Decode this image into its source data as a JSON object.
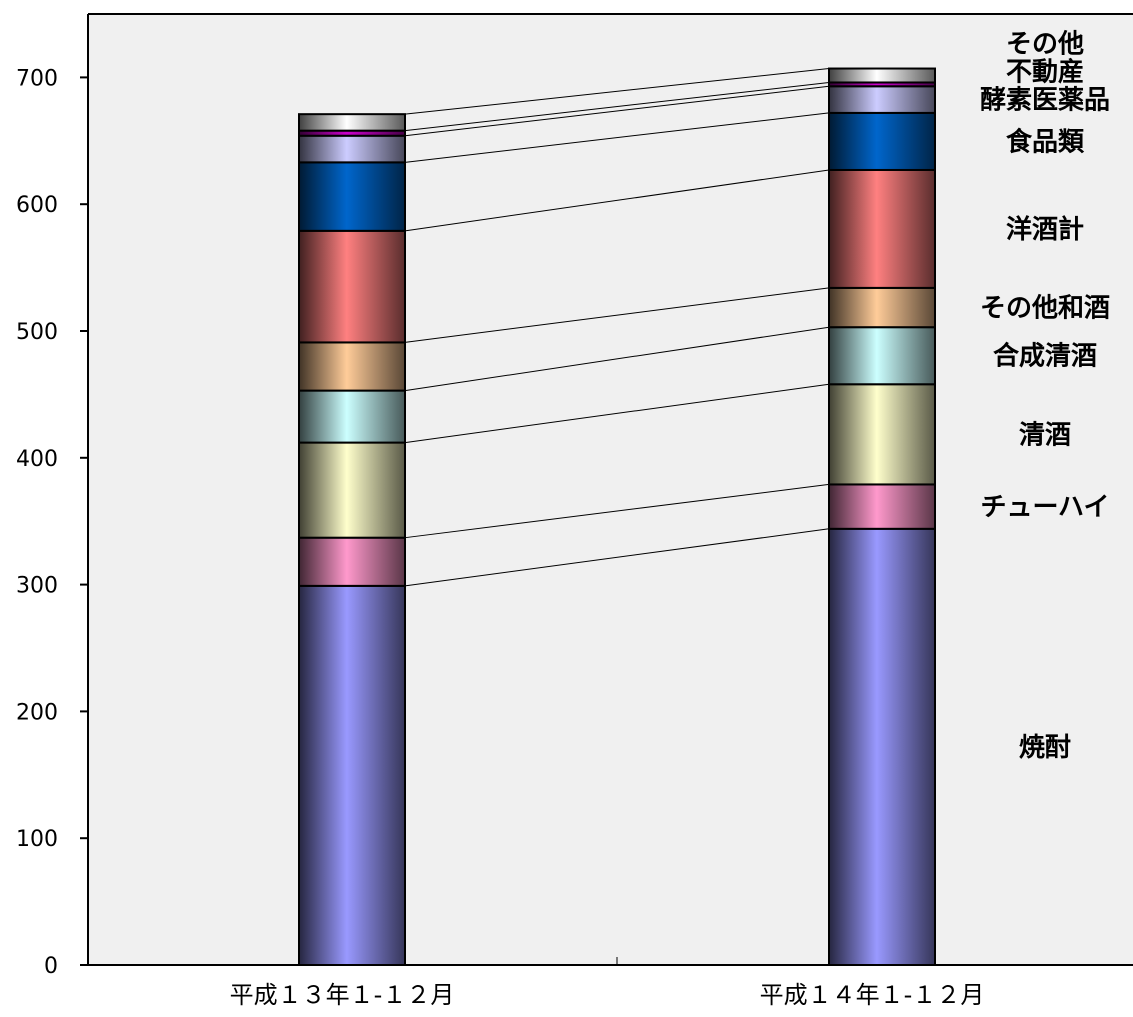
{
  "chart_data": {
    "type": "bar",
    "stacked": true,
    "categories": [
      "平成１３年１-１２月",
      "平成１４年１-１２月"
    ],
    "ylim": [
      0,
      750
    ],
    "yticks": [
      0,
      100,
      200,
      300,
      400,
      500,
      600,
      700
    ],
    "grid": false,
    "plot_background": "#f0f0f0",
    "connector_lines": true,
    "legend": "right, labels beside second bar",
    "series": [
      {
        "name": "焼酎",
        "values": [
          299,
          344
        ],
        "color": "#9999ff"
      },
      {
        "name": "チューハイ",
        "values": [
          38,
          35
        ],
        "color": "#ff99cc"
      },
      {
        "name": "清酒",
        "values": [
          75,
          79
        ],
        "color": "#ffffcc"
      },
      {
        "name": "合成清酒",
        "values": [
          41,
          45
        ],
        "color": "#ccffff"
      },
      {
        "name": "その他和酒",
        "values": [
          38,
          31
        ],
        "color": "#ffcc99"
      },
      {
        "name": "洋酒計",
        "values": [
          88,
          93
        ],
        "color": "#ff8080"
      },
      {
        "name": "食品類",
        "values": [
          54,
          45
        ],
        "color": "#0066cc"
      },
      {
        "name": "酵素医薬品",
        "values": [
          21,
          21
        ],
        "color": "#ccccff"
      },
      {
        "name": "不動産",
        "values": [
          4,
          3
        ],
        "color": "#cc00cc"
      },
      {
        "name": "その他",
        "values": [
          13,
          11
        ],
        "color": "#ffffff"
      }
    ]
  }
}
